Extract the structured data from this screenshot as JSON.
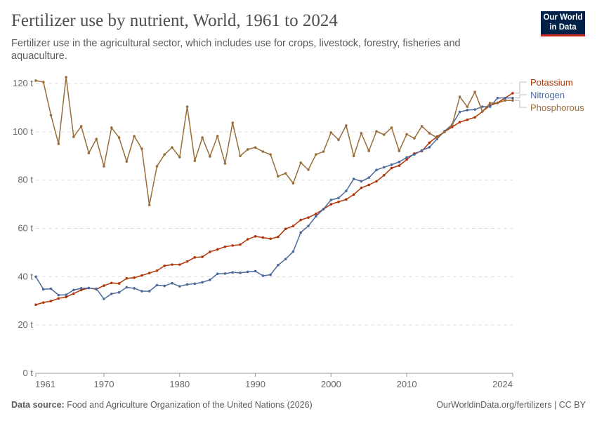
{
  "header": {
    "title": "Fertilizer use by nutrient, World, 1961 to 2024",
    "subtitle": "Fertilizer use in the agricultural sector, which includes use for crops, livestock, forestry, fisheries and aquaculture.",
    "logo_line1": "Our World",
    "logo_line2": "in Data"
  },
  "footer": {
    "source_label": "Data source:",
    "source_text": " Food and Agriculture Organization of the United Nations (2026)",
    "credit": "OurWorldinData.org/fertilizers | CC BY"
  },
  "chart_data": {
    "type": "line",
    "title": "Fertilizer use by nutrient, World, 1961 to 2024",
    "xlim": [
      1961,
      2024
    ],
    "ylim": [
      0,
      120
    ],
    "x_ticks": [
      "1961",
      "1970",
      "1980",
      "1990",
      "2000",
      "2010",
      "2024"
    ],
    "y_ticks": [
      "0 t",
      "20 t",
      "40 t",
      "60 t",
      "80 t",
      "100 t",
      "120 t"
    ],
    "grid": "horizontal dashed",
    "legend": "right, end-of-line labels",
    "x_start": 1961,
    "series": [
      {
        "name": "Potassium",
        "color": "#b13507",
        "values": [
          28.4,
          29.3,
          29.9,
          31,
          31.6,
          33,
          34.5,
          35.3,
          34.8,
          36.3,
          37.4,
          37.2,
          39.3,
          39.6,
          40.5,
          41.5,
          42.5,
          44.5,
          45,
          45,
          46.3,
          48,
          48.2,
          50.3,
          51.3,
          52.4,
          52.9,
          53.3,
          55.5,
          56.7,
          56.2,
          55.7,
          56.5,
          59.8,
          61,
          63.5,
          64.5,
          66,
          68,
          70,
          71,
          72,
          74,
          76.8,
          78,
          79.5,
          82,
          85,
          86,
          88.5,
          91,
          92,
          95.5,
          98,
          100,
          102,
          104,
          105,
          106,
          108.4,
          110.9,
          112,
          114,
          116
        ]
      },
      {
        "name": "Nitrogen",
        "color": "#4c6a9c",
        "values": [
          40,
          34.8,
          35,
          32.4,
          32.5,
          34.5,
          35.2,
          35.3,
          35,
          30.8,
          32.9,
          33.5,
          35.6,
          35.2,
          34,
          34,
          36.5,
          36.2,
          37.3,
          36,
          36.8,
          37.1,
          37.7,
          38.7,
          41.2,
          41.3,
          41.8,
          41.6,
          42,
          42.3,
          40.4,
          40.8,
          44.8,
          47.3,
          50.4,
          58.3,
          61,
          65,
          68,
          71.8,
          72.6,
          75.5,
          80.5,
          79.5,
          81,
          84.2,
          85.3,
          86.4,
          87.5,
          89.4,
          90.6,
          92.3,
          93.6,
          97,
          100.3,
          103,
          108.2,
          109,
          109.2,
          110.4,
          110.4,
          114,
          114,
          114
        ]
      },
      {
        "name": "Phosphorous",
        "color": "#996d39",
        "values": [
          121.2,
          120.6,
          106.9,
          95,
          122.6,
          97.9,
          102.3,
          91.2,
          97,
          85.7,
          101.7,
          97.6,
          87.7,
          98.2,
          93,
          69.7,
          85.7,
          90.6,
          93.5,
          89.5,
          110.4,
          88,
          97.6,
          89.8,
          98.2,
          86.9,
          103.7,
          90,
          92.7,
          93.5,
          91.8,
          90.6,
          81.6,
          82.8,
          78.7,
          87.2,
          84.3,
          90.6,
          91.8,
          99.7,
          96.7,
          102.6,
          90,
          99.4,
          92.1,
          100.2,
          98.8,
          101.7,
          92.1,
          99,
          97.3,
          102.3,
          99.4,
          97.6,
          99.9,
          102.8,
          114.5,
          110.4,
          116.5,
          108.4,
          111.9,
          111.9,
          113,
          113
        ]
      }
    ]
  }
}
